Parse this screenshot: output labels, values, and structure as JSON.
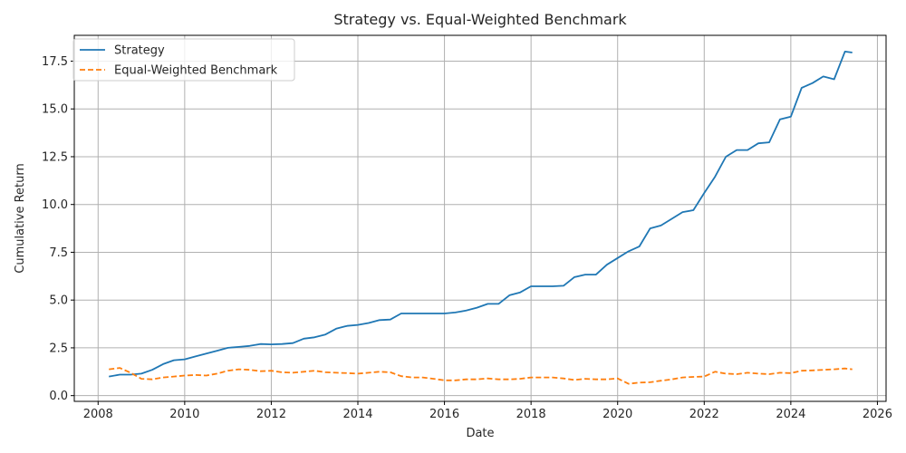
{
  "chart_data": {
    "type": "line",
    "title": "Strategy vs. Equal-Weighted Benchmark",
    "xlabel": "Date",
    "ylabel": "Cumulative Return",
    "xlim": [
      2007.45,
      2026.2
    ],
    "ylim": [
      -0.3,
      18.85
    ],
    "x_ticks": [
      2008,
      2010,
      2012,
      2014,
      2016,
      2018,
      2020,
      2022,
      2024,
      2026
    ],
    "y_ticks": [
      0.0,
      2.5,
      5.0,
      7.5,
      10.0,
      12.5,
      15.0,
      17.5
    ],
    "y_tick_labels": [
      "0.0",
      "2.5",
      "5.0",
      "7.5",
      "10.0",
      "12.5",
      "15.0",
      "17.5"
    ],
    "grid": true,
    "legend_position": "upper-left",
    "colors": {
      "strategy": "#1f77b4",
      "benchmark": "#ff7f0e"
    },
    "series": [
      {
        "name": "Strategy",
        "style": "solid",
        "x": [
          2008.25,
          2008.5,
          2008.75,
          2009.0,
          2009.25,
          2009.5,
          2009.75,
          2010.0,
          2010.25,
          2010.5,
          2010.75,
          2011.0,
          2011.25,
          2011.5,
          2011.75,
          2012.0,
          2012.25,
          2012.5,
          2012.75,
          2013.0,
          2013.25,
          2013.5,
          2013.75,
          2014.0,
          2014.25,
          2014.5,
          2014.75,
          2015.0,
          2015.25,
          2015.5,
          2015.75,
          2016.0,
          2016.25,
          2016.5,
          2016.75,
          2017.0,
          2017.25,
          2017.5,
          2017.75,
          2018.0,
          2018.25,
          2018.5,
          2018.75,
          2019.0,
          2019.25,
          2019.5,
          2019.75,
          2020.0,
          2020.25,
          2020.5,
          2020.75,
          2021.0,
          2021.25,
          2021.5,
          2021.75,
          2022.0,
          2022.25,
          2022.5,
          2022.75,
          2023.0,
          2023.25,
          2023.5,
          2023.75,
          2024.0,
          2024.25,
          2024.5,
          2024.75,
          2025.0,
          2025.25,
          2025.42
        ],
        "y": [
          1.0,
          1.1,
          1.1,
          1.15,
          1.35,
          1.65,
          1.85,
          1.9,
          2.05,
          2.2,
          2.35,
          2.5,
          2.55,
          2.6,
          2.7,
          2.68,
          2.7,
          2.75,
          2.98,
          3.05,
          3.2,
          3.5,
          3.65,
          3.7,
          3.8,
          3.95,
          3.98,
          4.3,
          4.3,
          4.3,
          4.3,
          4.3,
          4.35,
          4.45,
          4.6,
          4.8,
          4.8,
          5.25,
          5.4,
          5.72,
          5.72,
          5.72,
          5.75,
          6.2,
          6.33,
          6.33,
          6.85,
          7.2,
          7.55,
          7.8,
          8.75,
          8.9,
          9.25,
          9.6,
          9.7,
          10.6,
          11.45,
          12.5,
          12.85,
          12.85,
          13.2,
          13.25,
          14.45,
          14.6,
          16.1,
          16.35,
          16.7,
          16.55,
          18.0,
          17.95
        ]
      },
      {
        "name": "Equal-Weighted Benchmark",
        "style": "dashed",
        "x": [
          2008.25,
          2008.5,
          2008.75,
          2009.0,
          2009.25,
          2009.5,
          2009.75,
          2010.0,
          2010.25,
          2010.5,
          2010.75,
          2011.0,
          2011.25,
          2011.5,
          2011.75,
          2012.0,
          2012.25,
          2012.5,
          2012.75,
          2013.0,
          2013.25,
          2013.5,
          2013.75,
          2014.0,
          2014.25,
          2014.5,
          2014.75,
          2015.0,
          2015.25,
          2015.5,
          2015.75,
          2016.0,
          2016.25,
          2016.5,
          2016.75,
          2017.0,
          2017.25,
          2017.5,
          2017.75,
          2018.0,
          2018.25,
          2018.5,
          2018.75,
          2019.0,
          2019.25,
          2019.5,
          2019.75,
          2020.0,
          2020.25,
          2020.5,
          2020.75,
          2021.0,
          2021.25,
          2021.5,
          2021.75,
          2022.0,
          2022.25,
          2022.5,
          2022.75,
          2023.0,
          2023.25,
          2023.5,
          2023.75,
          2024.0,
          2024.25,
          2024.5,
          2024.75,
          2025.0,
          2025.25,
          2025.42
        ],
        "y": [
          1.38,
          1.45,
          1.2,
          0.88,
          0.85,
          0.95,
          1.0,
          1.05,
          1.08,
          1.05,
          1.15,
          1.3,
          1.38,
          1.35,
          1.28,
          1.3,
          1.22,
          1.2,
          1.25,
          1.3,
          1.22,
          1.2,
          1.18,
          1.15,
          1.2,
          1.25,
          1.22,
          1.02,
          0.95,
          0.95,
          0.88,
          0.8,
          0.8,
          0.85,
          0.85,
          0.9,
          0.85,
          0.85,
          0.88,
          0.95,
          0.95,
          0.95,
          0.9,
          0.82,
          0.88,
          0.85,
          0.85,
          0.9,
          0.62,
          0.68,
          0.7,
          0.78,
          0.85,
          0.95,
          0.98,
          1.0,
          1.25,
          1.15,
          1.12,
          1.2,
          1.15,
          1.12,
          1.2,
          1.18,
          1.3,
          1.32,
          1.35,
          1.38,
          1.42,
          1.38
        ]
      }
    ]
  }
}
